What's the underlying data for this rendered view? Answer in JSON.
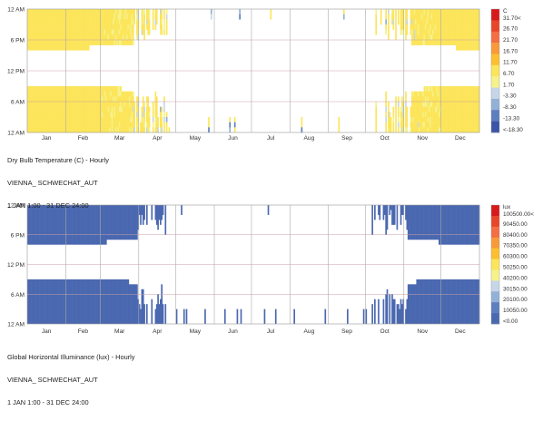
{
  "chart_data": [
    {
      "type": "heatmap",
      "title": "Dry Bulb Temperature (C) - Hourly",
      "location": "VIENNA_ SCHWECHAT_AUT",
      "period": "1 JAN 1:00 - 31 DEC 24:00",
      "y_tick_labels": [
        "12 AM",
        "6 PM",
        "12 PM",
        "6 AM",
        "12 AM"
      ],
      "x_tick_labels": [
        "Jan",
        "Feb",
        "Mar",
        "Apr",
        "May",
        "Jun",
        "Jul",
        "Aug",
        "Sep",
        "Oct",
        "Nov",
        "Dec"
      ],
      "legend_unit": "C",
      "legend_labels": [
        "31.70<",
        "26.70",
        "21.70",
        "16.70",
        "11.70",
        "6.70",
        "1.70",
        "-3.30",
        "-8.30",
        "-13.30",
        "<-18.30"
      ],
      "legend_colors": [
        "#d7191c",
        "#e8452a",
        "#f46d43",
        "#f89a3a",
        "#fdbf2f",
        "#fce55a",
        "#f5f28c",
        "#c6d6e8",
        "#93b0d6",
        "#5d7fc0",
        "#3b56a8"
      ],
      "blank_note": "Only hours within the conditional range are colored; daytime summer hours are blank"
    },
    {
      "type": "heatmap",
      "title": "Global Horizontal Illuminance (lux) - Hourly",
      "location": "VIENNA_ SCHWECHAT_AUT",
      "period": "1 JAN 1:00 - 31 DEC 24:00",
      "y_tick_labels": [
        "12 AM",
        "6 PM",
        "12 PM",
        "6 AM",
        "12 AM"
      ],
      "x_tick_labels": [
        "Jan",
        "Feb",
        "Mar",
        "Apr",
        "May",
        "Jun",
        "Jul",
        "Aug",
        "Sep",
        "Oct",
        "Nov",
        "Dec"
      ],
      "legend_unit": "lux",
      "legend_labels": [
        "100500.00<",
        "90450.00",
        "80400.00",
        "70350.00",
        "60300.00",
        "50250.00",
        "40200.00",
        "30150.00",
        "20100.00",
        "10050.00",
        "<0.00"
      ],
      "legend_colors": [
        "#d7191c",
        "#e8452a",
        "#f46d43",
        "#f89a3a",
        "#fdbf2f",
        "#fce55a",
        "#f5f28c",
        "#c6d6e8",
        "#93b0d6",
        "#5d7fc0",
        "#4a68b0"
      ],
      "blank_note": "Only night hours (illuminance ~0) are colored"
    }
  ]
}
